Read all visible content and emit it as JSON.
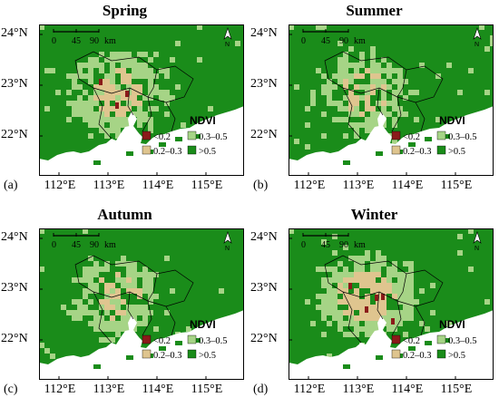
{
  "legend": {
    "title": "NDVI",
    "classes": [
      {
        "label": "<0.2",
        "color": "#8b1a1a"
      },
      {
        "label": "0.3–0.5",
        "color": "#a6d486"
      },
      {
        "label": "0.2–0.3",
        "color": "#dfc58f"
      },
      {
        "label": ">0.5",
        "color": "#1a8c1a"
      }
    ]
  },
  "scale_bar": {
    "labels": [
      "0",
      "45",
      "90",
      "km"
    ]
  },
  "north_arrow": {
    "label": "N"
  },
  "axes": {
    "lat_labels": [
      "24°N",
      "23°N",
      "22°N"
    ],
    "lon_labels": [
      "112°E",
      "113°E",
      "114°E",
      "115°E"
    ]
  },
  "colors": {
    "dense": "#1a8c1a",
    "medium": "#a6d486",
    "sparse": "#dfc58f",
    "low": "#8b1a1a",
    "sea": "#ffffff",
    "frame": "#000000"
  },
  "panels": [
    {
      "letter": "(a)",
      "title": "Spring",
      "intensity": 0.55,
      "low_pixels": 3
    },
    {
      "letter": "(b)",
      "title": "Summer",
      "intensity": 0.35,
      "low_pixels": 0
    },
    {
      "letter": "(c)",
      "title": "Autumn",
      "intensity": 0.4,
      "low_pixels": 0
    },
    {
      "letter": "(d)",
      "title": "Winter",
      "intensity": 0.75,
      "low_pixels": 5
    }
  ]
}
